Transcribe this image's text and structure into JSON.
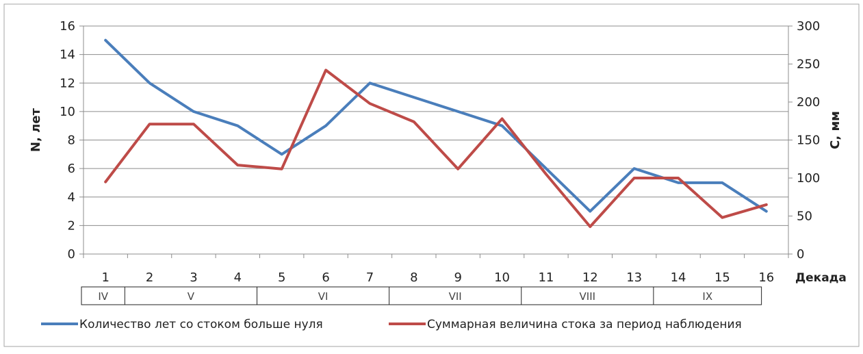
{
  "chart_data": {
    "type": "line",
    "x": [
      "1",
      "2",
      "3",
      "4",
      "5",
      "6",
      "7",
      "8",
      "9",
      "10",
      "11",
      "12",
      "13",
      "14",
      "15",
      "16"
    ],
    "xlabel": "Декада",
    "y_left": {
      "label": "N, лет",
      "ticks": [
        "0",
        "2",
        "4",
        "6",
        "8",
        "10",
        "12",
        "14",
        "16"
      ],
      "lim": [
        0,
        16
      ]
    },
    "y_right": {
      "label": "С, мм",
      "ticks": [
        "0",
        "50",
        "100",
        "150",
        "200",
        "250",
        "300"
      ],
      "lim": [
        0,
        300
      ]
    },
    "months": [
      {
        "label": "IV",
        "from": 1,
        "to": 1
      },
      {
        "label": "V",
        "from": 2,
        "to": 4
      },
      {
        "label": "VI",
        "from": 5,
        "to": 7
      },
      {
        "label": "VII",
        "from": 8,
        "to": 10
      },
      {
        "label": "VIII",
        "from": 11,
        "to": 13
      },
      {
        "label": "IX",
        "from": 14,
        "to": 16
      }
    ],
    "series": [
      {
        "name": "Количество лет со стоком больше нуля",
        "axis": "left",
        "color": "#4a7ebb",
        "values": [
          15,
          12,
          10,
          9,
          7,
          9,
          12,
          11,
          10,
          9,
          6,
          3,
          6,
          5,
          5,
          3
        ]
      },
      {
        "name": "Суммарная величина стока за период наблюдения",
        "axis": "right",
        "color": "#be4b48",
        "values": [
          95,
          171,
          171,
          117,
          112,
          242,
          198,
          174,
          112,
          178,
          105,
          36,
          100,
          100,
          48,
          65
        ]
      }
    ],
    "grid": true,
    "legend": "bottom"
  }
}
